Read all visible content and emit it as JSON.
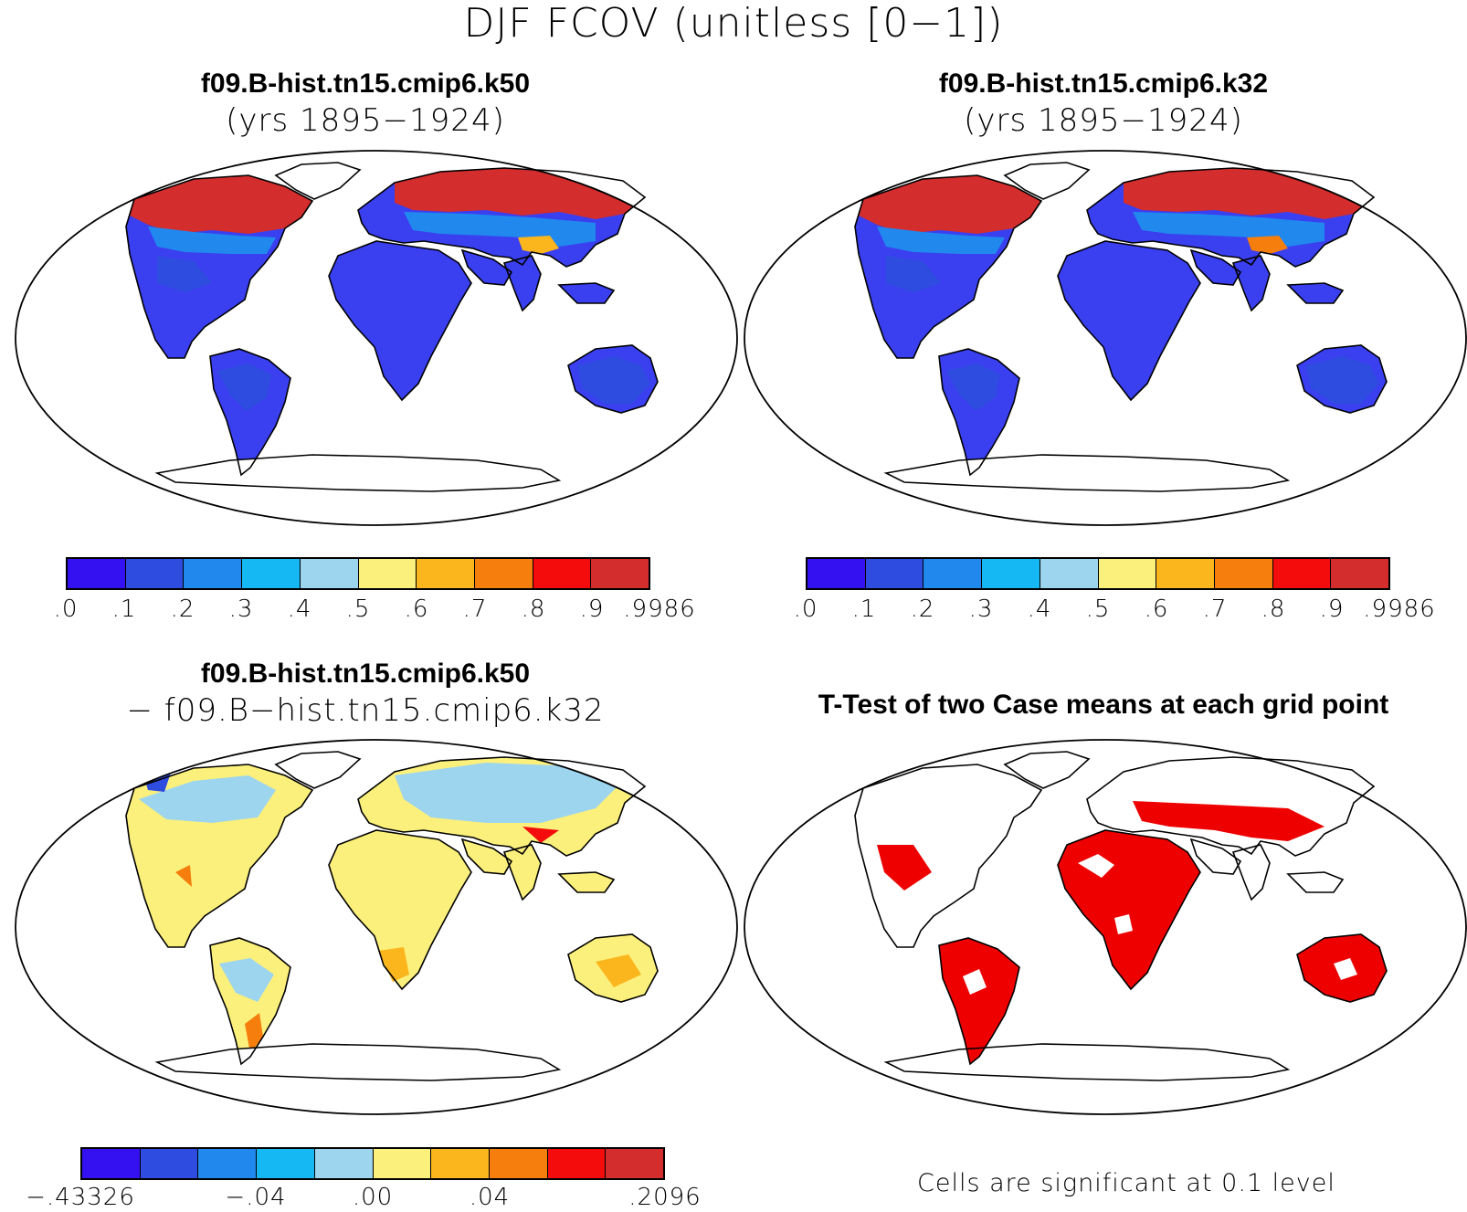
{
  "figure": {
    "title": "DJF FCOV (unitless [0−1])"
  },
  "panels": {
    "case1": {
      "title": "f09.B-hist.tn15.cmip6.k50",
      "subtitle": "(yrs 1895−1924)"
    },
    "case2": {
      "title": "f09.B-hist.tn15.cmip6.k32",
      "subtitle": "(yrs 1895−1924)"
    },
    "diff": {
      "title": "f09.B-hist.tn15.cmip6.k50",
      "subtitle": "− f09.B−hist.tn15.cmip6.k32"
    },
    "ttest": {
      "title": "T-Test of two Case means at each grid point",
      "note": "Cells are significant at 0.1 level"
    }
  },
  "colorbars": {
    "abs": {
      "colors": [
        "#3311f0",
        "#2f4ce0",
        "#2188ee",
        "#15b8f2",
        "#9dd4ee",
        "#fcf07c",
        "#fbb51d",
        "#f57e0d",
        "#f40c0c",
        "#d32d2d"
      ],
      "labels": [
        ".0",
        ".1",
        ".2",
        ".3",
        ".4",
        ".5",
        ".6",
        ".7",
        ".8",
        ".9",
        ".9986"
      ]
    },
    "diff": {
      "colors": [
        "#3311f0",
        "#2f4ce0",
        "#2188ee",
        "#15b8f2",
        "#9dd4ee",
        "#fcf07c",
        "#fbb51d",
        "#f57e0d",
        "#f40c0c",
        "#d32d2d"
      ],
      "labels": [
        "−.43326",
        "−.04",
        ".00",
        ".04",
        ".2096"
      ]
    },
    "significance_color": "#ee0000"
  }
}
